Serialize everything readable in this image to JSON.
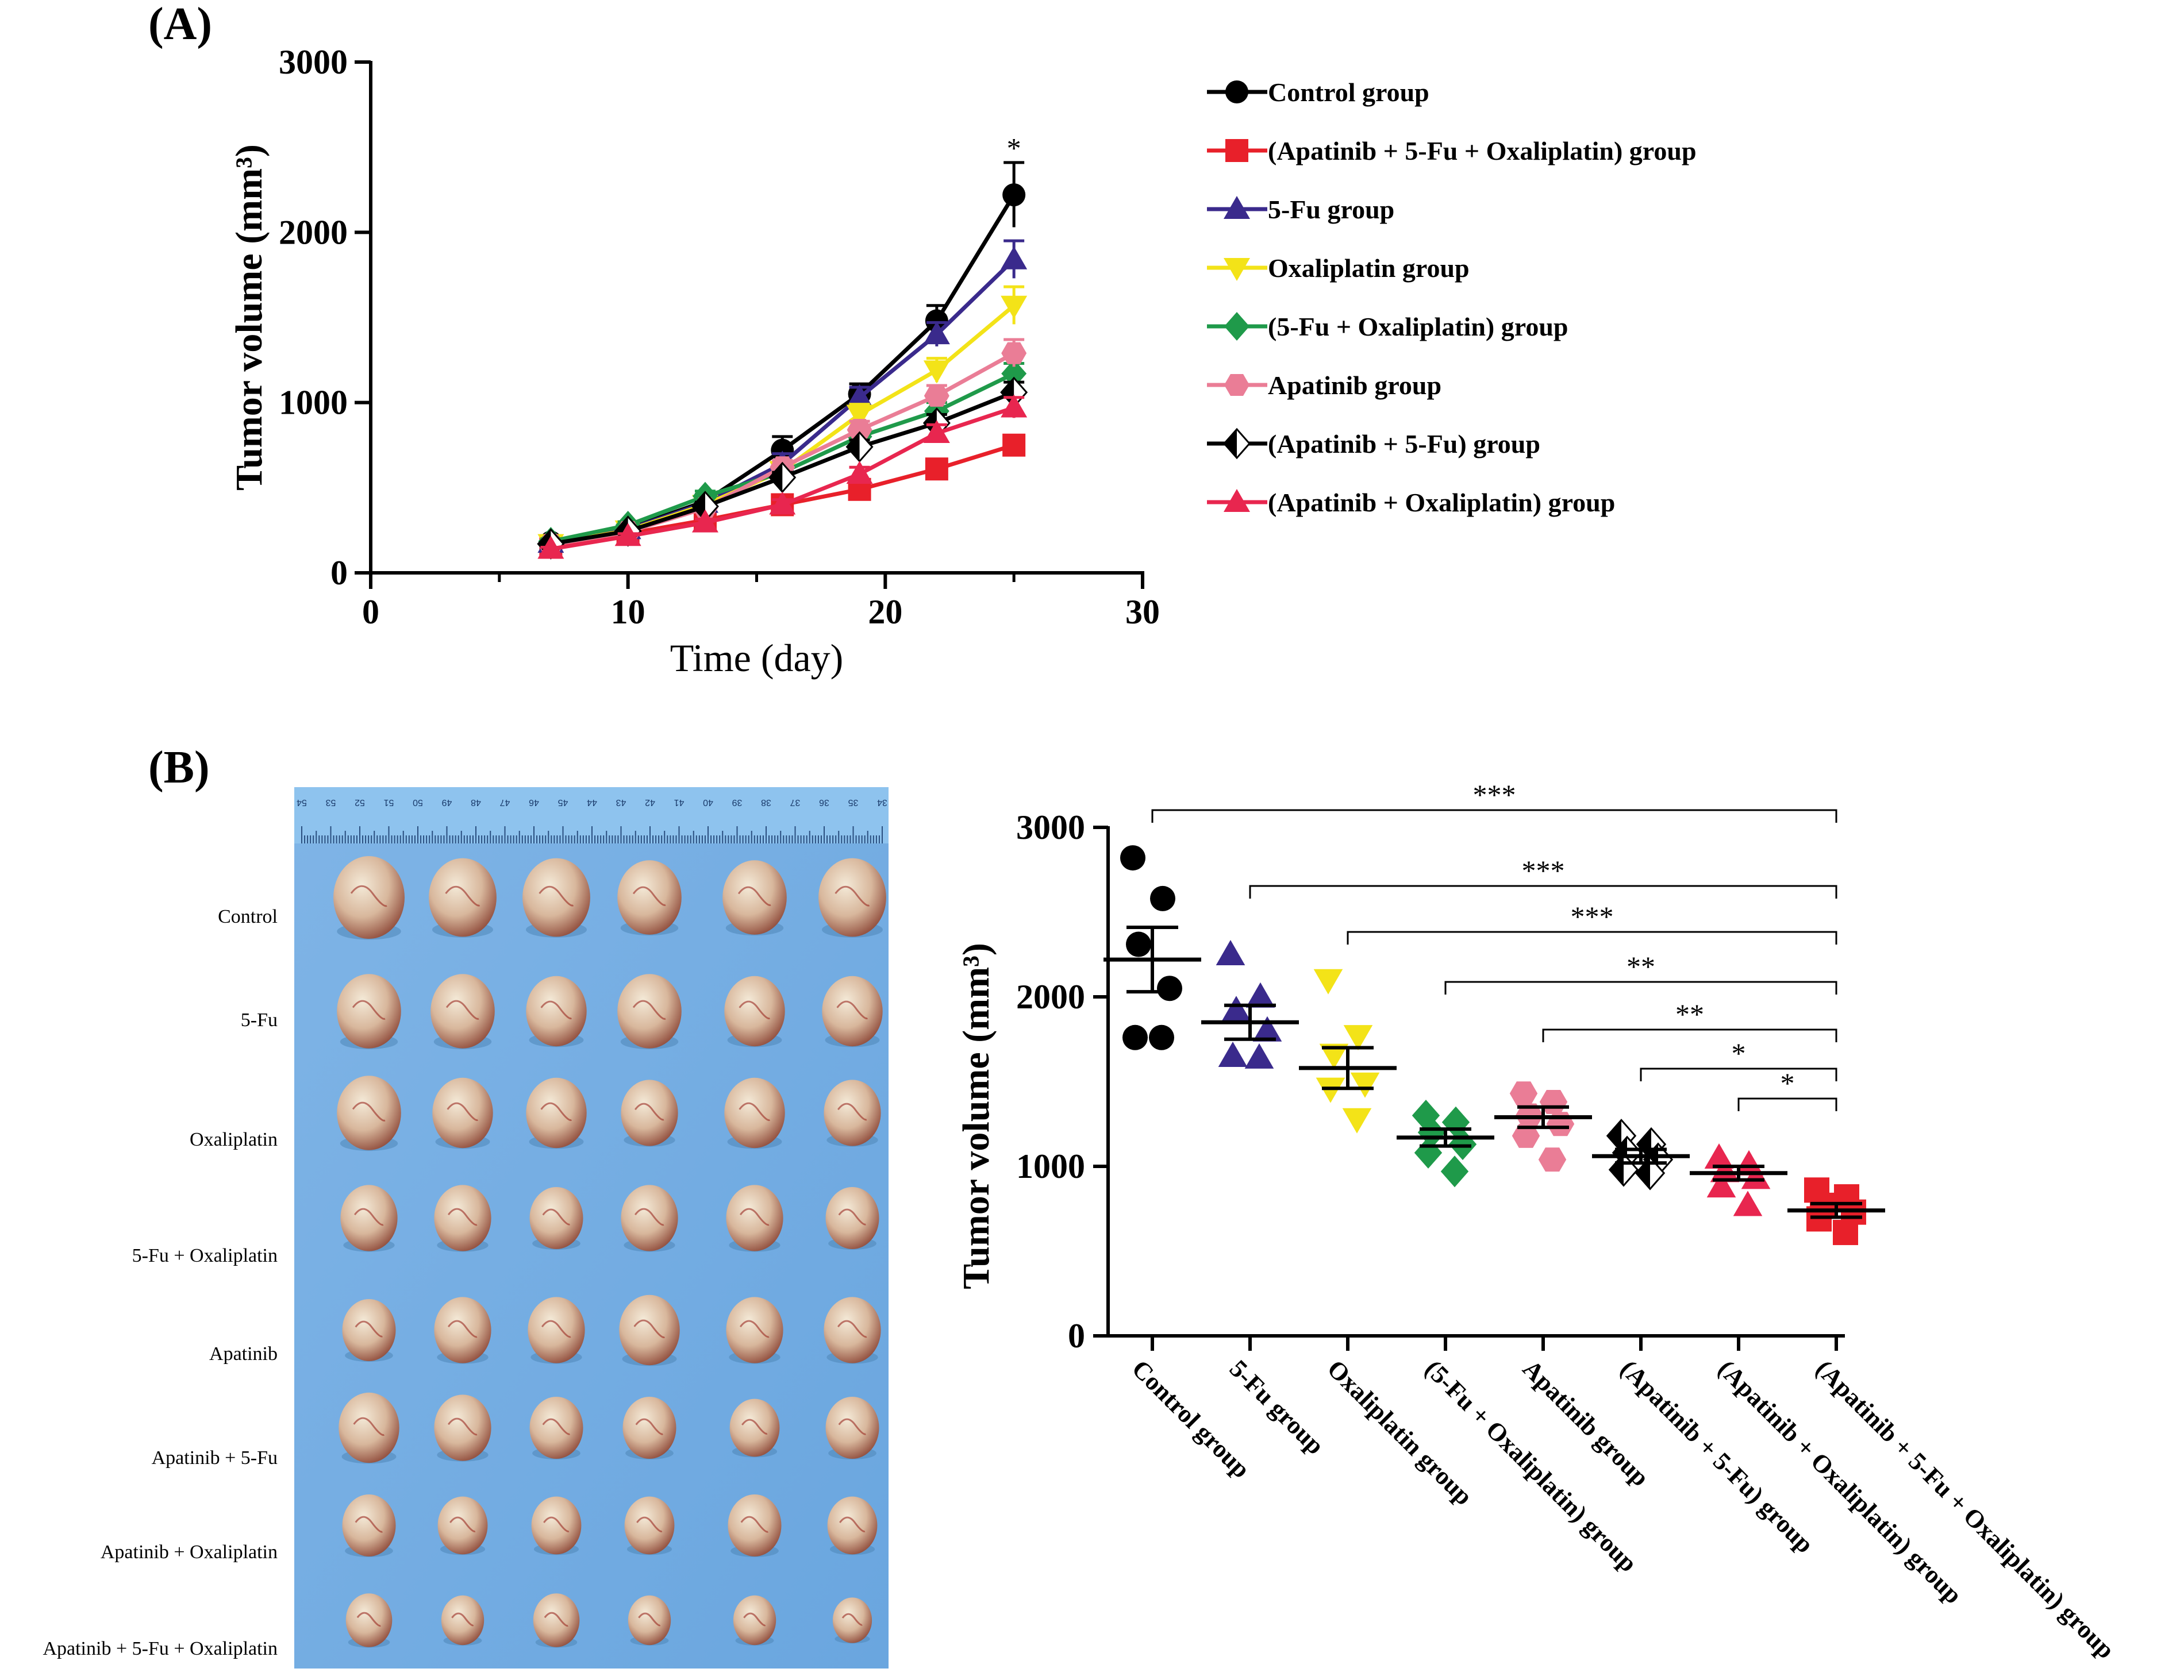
{
  "panel_a_label": "(A)",
  "panel_b_label": "(B)",
  "chart_data": [
    {
      "type": "line",
      "panel": "A",
      "title": "",
      "xlabel": "Time  (day)",
      "ylabel": "Tumor volume (mm³)",
      "xlim": [
        0,
        30
      ],
      "ylim": [
        0,
        3000
      ],
      "xticks": [
        0,
        10,
        20,
        30
      ],
      "yticks": [
        0,
        1000,
        2000,
        3000
      ],
      "x": [
        7,
        10,
        13,
        16,
        19,
        22,
        25
      ],
      "annotation": "*",
      "legend_position": "right",
      "series": [
        {
          "name": "Control group",
          "color": "#000000",
          "marker": "circle",
          "values": [
            180,
            260,
            420,
            720,
            1050,
            1480,
            2220
          ],
          "err": [
            20,
            25,
            40,
            80,
            60,
            90,
            190
          ]
        },
        {
          "name": "(Apatinib + 5-Fu + Oxaliplatin) group",
          "color": "#e8202a",
          "marker": "square",
          "values": [
            150,
            230,
            310,
            400,
            490,
            610,
            750
          ],
          "err": [
            10,
            15,
            20,
            25,
            25,
            30,
            40
          ]
        },
        {
          "name": "5-Fu group",
          "color": "#3a2a8c",
          "marker": "triangle",
          "values": [
            175,
            255,
            410,
            640,
            1030,
            1400,
            1840
          ],
          "err": [
            15,
            20,
            30,
            60,
            60,
            70,
            110
          ]
        },
        {
          "name": "Oxaliplatin group",
          "color": "#f3e318",
          "marker": "triangle-down",
          "values": [
            170,
            250,
            400,
            600,
            930,
            1190,
            1570
          ],
          "err": [
            15,
            20,
            30,
            50,
            60,
            70,
            110
          ]
        },
        {
          "name": "(5-Fu + Oxaliplatin) group",
          "color": "#1f9a4a",
          "marker": "diamond",
          "values": [
            185,
            280,
            450,
            590,
            800,
            950,
            1170
          ],
          "err": [
            15,
            20,
            30,
            40,
            40,
            50,
            60
          ]
        },
        {
          "name": "Apatinib group",
          "color": "#ea7d96",
          "marker": "hexagon",
          "values": [
            165,
            240,
            380,
            620,
            840,
            1040,
            1290
          ],
          "err": [
            15,
            20,
            30,
            40,
            50,
            60,
            80
          ]
        },
        {
          "name": "(Apatinib + 5-Fu) group",
          "color": "#000000",
          "marker": "half-diamond",
          "values": [
            170,
            245,
            390,
            560,
            740,
            880,
            1060
          ],
          "err": [
            15,
            15,
            25,
            30,
            40,
            50,
            60
          ]
        },
        {
          "name": "(Apatinib + Oxaliplatin) group",
          "color": "#e8264f",
          "marker": "triangle",
          "values": [
            140,
            215,
            295,
            400,
            580,
            820,
            970
          ],
          "err": [
            10,
            15,
            20,
            30,
            40,
            50,
            60
          ]
        }
      ]
    },
    {
      "type": "scatter",
      "panel": "B",
      "title": "",
      "xlabel": "",
      "ylabel": "Tumor volume (mm³)",
      "ylim": [
        0,
        3000
      ],
      "yticks": [
        0,
        1000,
        2000,
        3000
      ],
      "categories": [
        "Control group",
        "5-Fu group",
        "Oxaliplatin group",
        "(5-Fu + Oxaliplatin) group",
        "Apatinib group",
        "(Apatinib + 5-Fu) group",
        "(Apatinib + Oxaliplatin) group",
        "(Apatinib + 5-Fu + Oxaliplatin) group"
      ],
      "colors": [
        "#000000",
        "#3a2a8c",
        "#f3e318",
        "#1f9a4a",
        "#ea7d96",
        "#000000",
        "#e8264f",
        "#e8202a"
      ],
      "markers": [
        "circle",
        "triangle",
        "triangle-down",
        "diamond",
        "hexagon",
        "half-diamond",
        "triangle",
        "square"
      ],
      "points": [
        [
          2820,
          2580,
          2310,
          2050,
          1760,
          1760
        ],
        [
          2250,
          2000,
          1920,
          1800,
          1650,
          1640
        ],
        [
          2100,
          1770,
          1660,
          1490,
          1460,
          1280
        ],
        [
          1300,
          1260,
          1200,
          1130,
          1080,
          970
        ],
        [
          1430,
          1380,
          1300,
          1250,
          1180,
          1040
        ],
        [
          1180,
          1130,
          1080,
          1040,
          980,
          960
        ],
        [
          1050,
          1010,
          970,
          930,
          880,
          770
        ],
        [
          860,
          820,
          770,
          730,
          690,
          610
        ]
      ],
      "means": [
        2220,
        1850,
        1580,
        1170,
        1290,
        1060,
        960,
        740
      ],
      "sems": [
        190,
        100,
        120,
        50,
        60,
        40,
        40,
        40
      ],
      "comparisons": [
        {
          "from": 0,
          "to": 7,
          "label": "***"
        },
        {
          "from": 1,
          "to": 7,
          "label": "***"
        },
        {
          "from": 2,
          "to": 7,
          "label": "***"
        },
        {
          "from": 3,
          "to": 7,
          "label": "**"
        },
        {
          "from": 4,
          "to": 7,
          "label": "**"
        },
        {
          "from": 5,
          "to": 7,
          "label": "*"
        },
        {
          "from": 6,
          "to": 7,
          "label": "*"
        }
      ]
    }
  ],
  "photo": {
    "row_labels": [
      "Control",
      "5-Fu",
      "Oxaliplatin",
      "5-Fu + Oxaliplatin",
      "Apatinib",
      "Apatinib + 5-Fu",
      "Apatinib + Oxaliplatin",
      "Apatinib + 5-Fu + Oxaliplatin"
    ],
    "tumor_sizes": [
      [
        1.0,
        0.95,
        0.95,
        0.9,
        0.9,
        0.95
      ],
      [
        0.9,
        0.9,
        0.85,
        0.9,
        0.85,
        0.85
      ],
      [
        0.9,
        0.85,
        0.85,
        0.8,
        0.85,
        0.8
      ],
      [
        0.8,
        0.8,
        0.75,
        0.8,
        0.8,
        0.75
      ],
      [
        0.75,
        0.8,
        0.8,
        0.85,
        0.8,
        0.8
      ],
      [
        0.85,
        0.8,
        0.75,
        0.75,
        0.7,
        0.75
      ],
      [
        0.75,
        0.7,
        0.7,
        0.7,
        0.75,
        0.7
      ],
      [
        0.65,
        0.6,
        0.65,
        0.6,
        0.6,
        0.55
      ]
    ],
    "ruler_numbers": [
      "54",
      "53",
      "52",
      "51",
      "50",
      "49",
      "48",
      "47",
      "46",
      "45",
      "44",
      "43",
      "42",
      "41",
      "40",
      "39",
      "38",
      "37",
      "36",
      "35",
      "34"
    ]
  }
}
